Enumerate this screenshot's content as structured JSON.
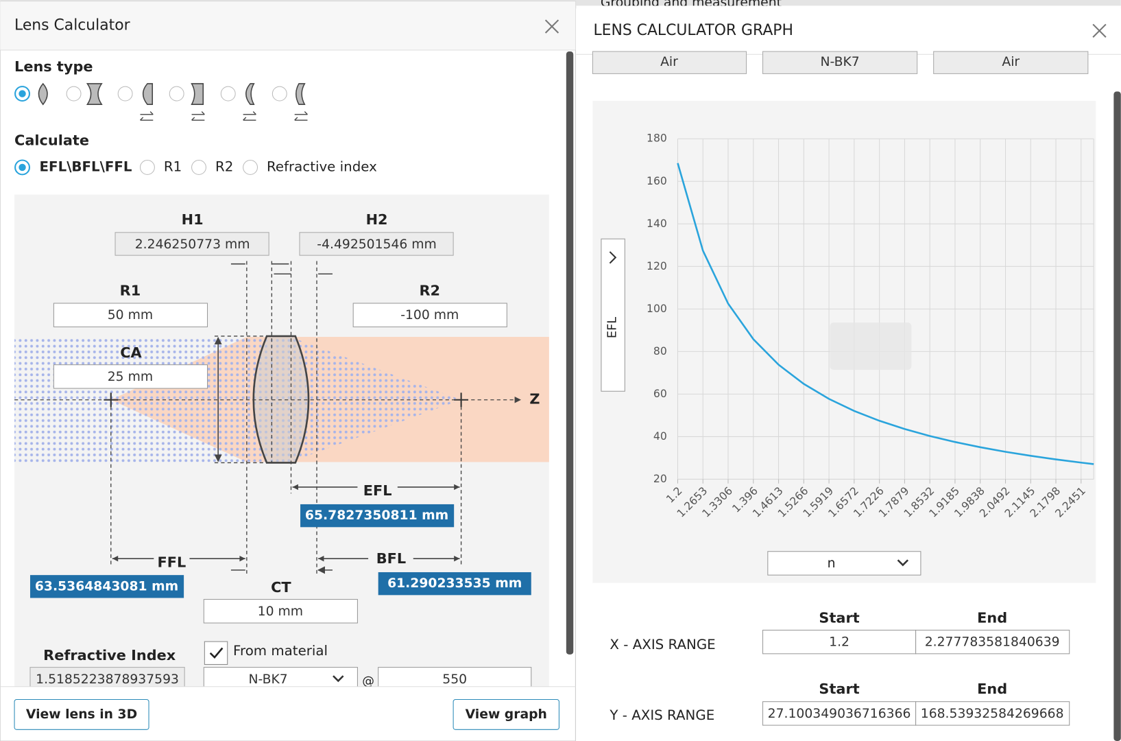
{
  "app_bar": {
    "menu_text": "Grouping and measurement"
  },
  "lens_calculator": {
    "title": "Lens Calculator",
    "lens_type_label": "Lens type",
    "calculate_label": "Calculate",
    "calculate_options": [
      "EFL\\BFL\\FFL",
      "R1",
      "R2",
      "Refractive index"
    ],
    "diagram": {
      "h1": {
        "label": "H1",
        "value": "2.246250773 mm"
      },
      "h2": {
        "label": "H2",
        "value": "-4.492501546 mm"
      },
      "r1": {
        "label": "R1",
        "value": "50 mm"
      },
      "r2": {
        "label": "R2",
        "value": "-100 mm"
      },
      "ca": {
        "label": "CA",
        "value": "25 mm"
      },
      "efl": {
        "label": "EFL",
        "value": "65.7827350811 mm"
      },
      "ffl": {
        "label": "FFL",
        "value": "63.5364843081 mm"
      },
      "bfl": {
        "label": "BFL",
        "value": "61.290233535 mm"
      },
      "ct": {
        "label": "CT",
        "value": "10 mm"
      },
      "axis_label": "Z"
    },
    "refractive_index": {
      "label": "Refractive Index",
      "value": "1.5185223878937593"
    },
    "from_material": "From material",
    "material": "N-BK7",
    "at": "@",
    "wavelength": "550",
    "buttons": [
      "View lens in 3D",
      "View graph"
    ]
  },
  "graph_panel": {
    "title": "LENS CALCULATOR GRAPH",
    "media": [
      "Air",
      "N-BK7",
      "Air"
    ],
    "ranges": [
      {
        "label": "X - AXIS RANGE",
        "start_header": "Start",
        "end_header": "End",
        "start": "1.2",
        "end": "2.277783581840639"
      },
      {
        "label": "Y - AXIS RANGE",
        "start_header": "Start",
        "end_header": "End",
        "start": "27.100349036716366",
        "end": "168.53932584269668"
      }
    ]
  },
  "chart_data": {
    "type": "line",
    "xlabel": "n",
    "ylabel": "EFL",
    "color": "#2aa4dc",
    "grid": true,
    "x": [
      1.2,
      1.2653,
      1.3306,
      1.396,
      1.4613,
      1.5266,
      1.5919,
      1.6572,
      1.7226,
      1.7879,
      1.8532,
      1.9185,
      1.9838,
      2.0492,
      2.1145,
      2.1798,
      2.2451,
      2.277783581840639
    ],
    "values": [
      168.54,
      127.42,
      102.53,
      85.8,
      73.81,
      64.79,
      57.75,
      52.1,
      47.46,
      43.59,
      40.31,
      37.49,
      35.04,
      32.89,
      31.0,
      29.31,
      27.8,
      27.1
    ],
    "xlim": [
      1.2,
      2.277783581840639
    ],
    "ylim": [
      20,
      180
    ],
    "xticks": [
      1.2,
      1.2653,
      1.3306,
      1.396,
      1.4613,
      1.5266,
      1.5919,
      1.6572,
      1.7226,
      1.7879,
      1.8532,
      1.9185,
      1.9838,
      2.0492,
      2.1145,
      2.1798,
      2.2451
    ],
    "yticks": [
      20,
      40,
      60,
      80,
      100,
      120,
      140,
      160,
      180
    ]
  }
}
